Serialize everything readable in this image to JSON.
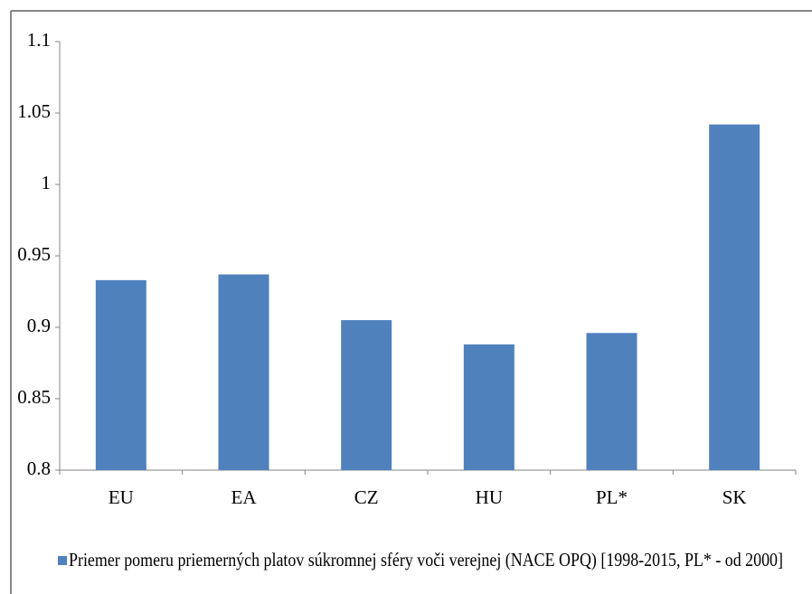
{
  "chart_data": {
    "type": "bar",
    "categories": [
      "EU",
      "EA",
      "CZ",
      "HU",
      "PL*",
      "SK"
    ],
    "series": [
      {
        "name": "Priemer pomeru priemerných platov súkromnej sféry voči verejnej (NACE OPQ) [1998-2015, PL* - od 2000]",
        "color": "#4f81bd",
        "values": [
          0.933,
          0.937,
          0.905,
          0.888,
          0.896,
          1.042
        ]
      }
    ],
    "ylim": [
      0.8,
      1.1
    ],
    "yticks": [
      0.8,
      0.85,
      0.9,
      0.95,
      1,
      1.05,
      1.1
    ],
    "grid": false,
    "legend": "bottom"
  }
}
